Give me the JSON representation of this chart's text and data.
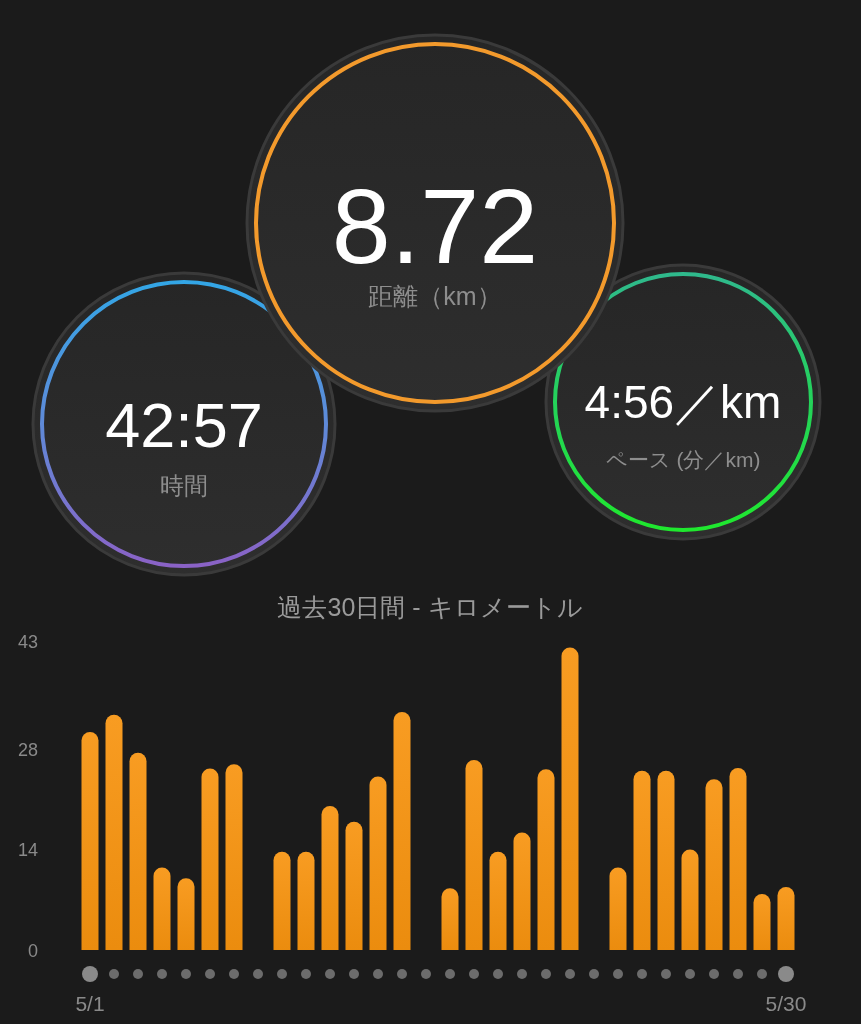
{
  "chart_data": [
    {
      "type": "other",
      "annotations": [
        "8.72",
        "距離（km）",
        "42:57",
        "時間",
        "4:56／km",
        "ペース (分／km)"
      ]
    },
    {
      "type": "bar",
      "title": "過去30日間 - キロメートル",
      "categories": [
        "5/1",
        null,
        null,
        null,
        null,
        null,
        null,
        null,
        null,
        null,
        null,
        null,
        null,
        null,
        null,
        null,
        null,
        null,
        null,
        null,
        null,
        null,
        null,
        null,
        null,
        null,
        null,
        null,
        null,
        "5/30"
      ],
      "values": [
        30.4,
        32.8,
        27.5,
        11.5,
        10.0,
        25.3,
        25.9,
        0,
        13.7,
        13.7,
        20.1,
        17.9,
        24.2,
        33.2,
        0,
        8.6,
        26.5,
        13.7,
        16.4,
        25.2,
        42.2,
        0,
        11.5,
        25.0,
        25.0,
        14.0,
        23.8,
        25.4,
        7.8,
        8.8
      ],
      "color": "#f7930f",
      "ylim": [
        0,
        43
      ],
      "yticks": [
        0,
        14,
        28,
        43
      ]
    }
  ]
}
